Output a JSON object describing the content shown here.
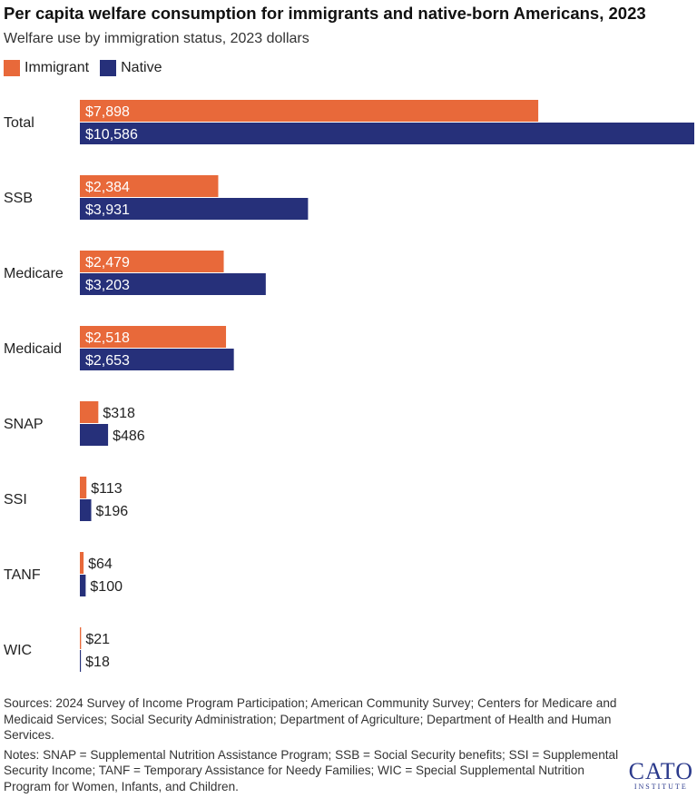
{
  "title": "Per capita welfare consumption for immigrants and native-born Americans, 2023",
  "subtitle": "Welfare use by immigration status, 2023 dollars",
  "colors": {
    "immigrant": "#E8693A",
    "native": "#26307A"
  },
  "legend": {
    "immigrant": "Immigrant",
    "native": "Native"
  },
  "chart_data": {
    "type": "bar",
    "orientation": "horizontal",
    "categories": [
      "Total",
      "SSB",
      "Medicare",
      "Medicaid",
      "SNAP",
      "SSI",
      "TANF",
      "WIC"
    ],
    "series": [
      {
        "name": "Immigrant",
        "values": [
          7898,
          2384,
          2479,
          2518,
          318,
          113,
          64,
          21
        ],
        "labels": [
          "$7,898",
          "$2,384",
          "$2,479",
          "$2,518",
          "$318",
          "$113",
          "$64",
          "$21"
        ]
      },
      {
        "name": "Native",
        "values": [
          10586,
          3931,
          3203,
          2653,
          486,
          196,
          100,
          18
        ],
        "labels": [
          "$10,586",
          "$3,931",
          "$3,203",
          "$2,653",
          "$486",
          "$196",
          "$100",
          "$18"
        ]
      }
    ],
    "xlim": [
      0,
      10586
    ],
    "grid": false
  },
  "sources": "Sources: 2024 Survey of Income Program Participation; American Community Survey; Centers for Medicare and Medicaid Services; Social Security Administration; Department of Agriculture; Department of Health and Human Services.",
  "notes": "Notes: SNAP = Supplemental Nutrition Assistance Program; SSB = Social Security benefits; SSI = Supplemental Security Income; TANF = Temporary Assistance for Needy Families; WIC = Special Supplemental Nutrition Program for Women, Infants, and Children.",
  "logo": {
    "name": "CATO",
    "sub": "INSTITUTE"
  }
}
